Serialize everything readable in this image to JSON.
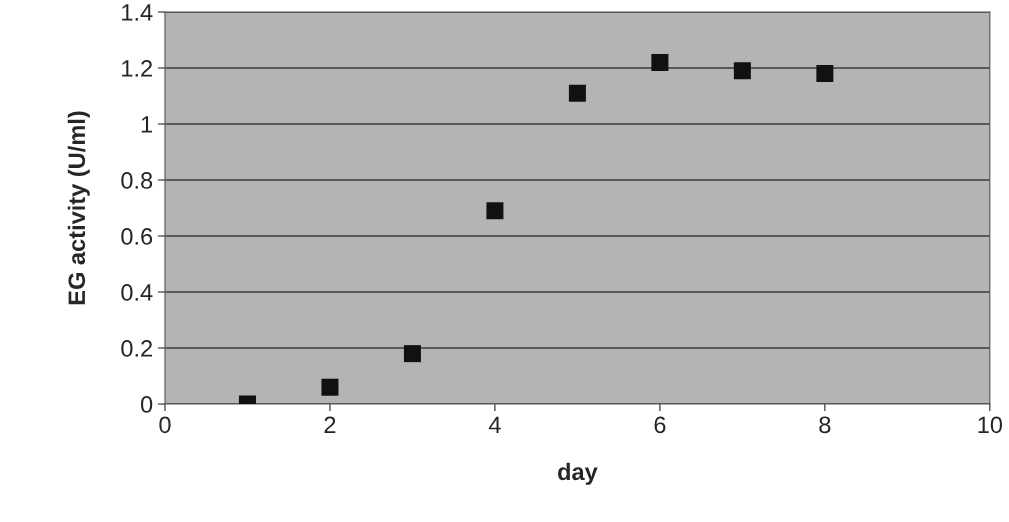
{
  "chart_data": {
    "type": "scatter",
    "xlabel": "day",
    "ylabel": "EG activity (U/ml)",
    "x": [
      1,
      2,
      3,
      4,
      5,
      6,
      7,
      8
    ],
    "values": [
      0.0,
      0.06,
      0.18,
      0.69,
      1.11,
      1.22,
      1.19,
      1.18
    ],
    "color": "#111111",
    "marker": "square",
    "xlim": [
      0,
      10
    ],
    "ylim": [
      0,
      1.4
    ],
    "xticks": [
      0,
      2,
      4,
      6,
      8,
      10
    ],
    "yticks": [
      0,
      0.2,
      0.4,
      0.6,
      0.8,
      1,
      1.2,
      1.4
    ],
    "grid": "y"
  }
}
